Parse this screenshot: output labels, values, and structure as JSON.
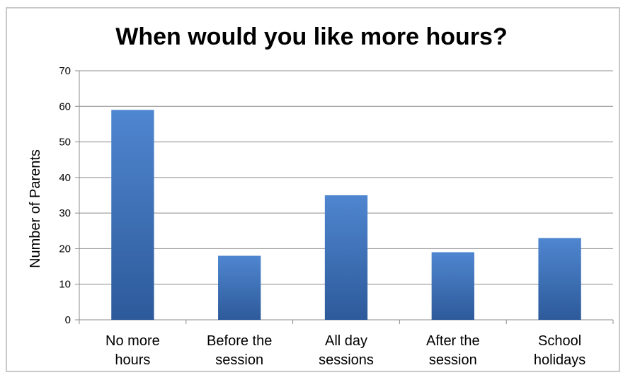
{
  "chart_data": {
    "type": "bar",
    "title": "When would you like more hours?",
    "xlabel": "",
    "ylabel": "Number of Parents",
    "ylim": [
      0,
      70
    ],
    "yticks": [
      0,
      10,
      20,
      30,
      40,
      50,
      60,
      70
    ],
    "categories": [
      [
        "No more",
        "hours"
      ],
      [
        "Before the",
        "session"
      ],
      [
        "All day",
        "sessions"
      ],
      [
        "After the",
        "session"
      ],
      [
        "School",
        "holidays"
      ]
    ],
    "values": [
      59,
      18,
      35,
      19,
      23
    ],
    "grid": true,
    "legend": "none",
    "colors": {
      "bar_top": "#4f86d0",
      "bar_bottom": "#2d5a9a",
      "grid": "#8c8c8c",
      "axis": "#8c8c8c"
    }
  }
}
